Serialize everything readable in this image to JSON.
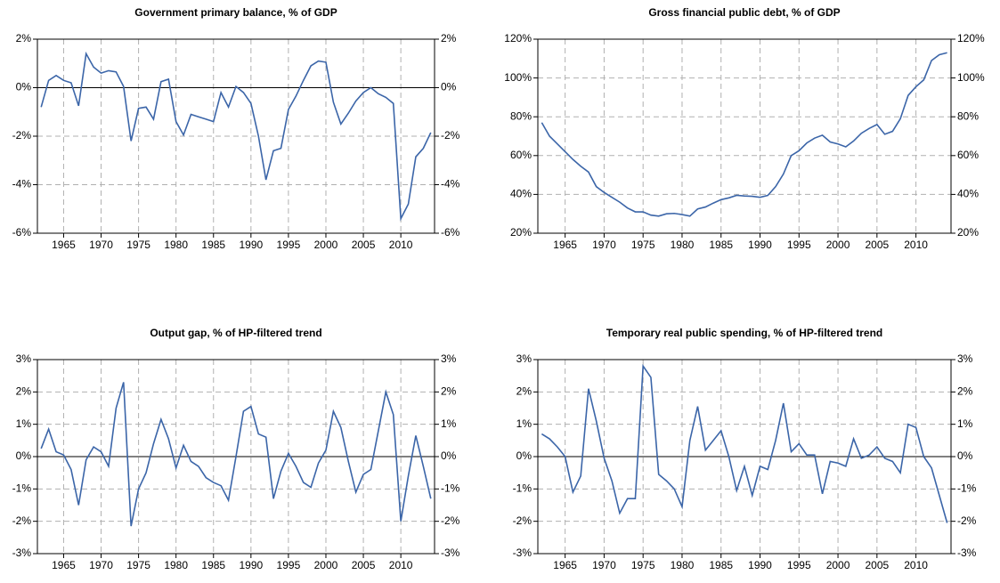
{
  "chart_data": [
    {
      "type": "line",
      "title": "Government primary balance, % of GDP",
      "x": [
        1962,
        1963,
        1964,
        1965,
        1966,
        1967,
        1968,
        1969,
        1970,
        1971,
        1972,
        1973,
        1974,
        1975,
        1976,
        1977,
        1978,
        1979,
        1980,
        1981,
        1982,
        1983,
        1984,
        1985,
        1986,
        1987,
        1988,
        1989,
        1990,
        1991,
        1992,
        1993,
        1994,
        1995,
        1996,
        1997,
        1998,
        1999,
        2000,
        2001,
        2002,
        2003,
        2004,
        2005,
        2006,
        2007,
        2008,
        2009,
        2010,
        2011,
        2012,
        2013,
        2014
      ],
      "values": [
        -0.8,
        0.3,
        0.5,
        0.3,
        0.2,
        -0.75,
        1.4,
        0.85,
        0.6,
        0.7,
        0.65,
        0.05,
        -2.2,
        -0.85,
        -0.8,
        -1.3,
        0.25,
        0.35,
        -1.4,
        -1.95,
        -1.1,
        -1.2,
        -1.3,
        -1.4,
        -0.2,
        -0.8,
        0.05,
        -0.2,
        -0.65,
        -2.0,
        -3.8,
        -2.6,
        -2.5,
        -0.9,
        -0.35,
        0.3,
        0.9,
        1.1,
        1.05,
        -0.6,
        -1.5,
        -1.05,
        -0.55,
        -0.2,
        0,
        -0.25,
        -0.4,
        -0.65,
        -5.4,
        -4.8,
        -2.85,
        -2.5,
        -1.85
      ],
      "color": "#3b65a8",
      "xlim": [
        1961.5,
        2014.5
      ],
      "xticks": [
        1965,
        1970,
        1975,
        1980,
        1985,
        1990,
        1995,
        2000,
        2005,
        2010
      ],
      "ylim": [
        -6,
        2
      ],
      "yticks": [
        {
          "value": -6,
          "label": "-6%"
        },
        {
          "value": -4,
          "label": "-4%"
        },
        {
          "value": -2,
          "label": "-2%"
        },
        {
          "value": 0,
          "label": "0%"
        },
        {
          "value": 2,
          "label": "2%"
        }
      ],
      "grid": true
    },
    {
      "type": "line",
      "title": "Gross financial public debt, % of GDP",
      "x": [
        1962,
        1963,
        1964,
        1965,
        1966,
        1967,
        1968,
        1969,
        1970,
        1971,
        1972,
        1973,
        1974,
        1975,
        1976,
        1977,
        1978,
        1979,
        1980,
        1981,
        1982,
        1983,
        1984,
        1985,
        1986,
        1987,
        1988,
        1989,
        1990,
        1991,
        1992,
        1993,
        1994,
        1995,
        1996,
        1997,
        1998,
        1999,
        2000,
        2001,
        2002,
        2003,
        2004,
        2005,
        2006,
        2007,
        2008,
        2009,
        2010,
        2011,
        2012,
        2013,
        2014
      ],
      "values": [
        77,
        70,
        66,
        62,
        58,
        54.5,
        51.5,
        44,
        41,
        38.5,
        36,
        33,
        31,
        31,
        29.3,
        28.8,
        30,
        30.2,
        29.6,
        28.8,
        32.5,
        33.5,
        35.5,
        37.3,
        38.2,
        39.5,
        39.2,
        39,
        38.5,
        39.5,
        44,
        50.5,
        60,
        62.5,
        66.5,
        69,
        70.5,
        67,
        66,
        64.5,
        67.5,
        71.5,
        74,
        76,
        71,
        72.5,
        79,
        91,
        95.5,
        99,
        109,
        112,
        113
      ],
      "color": "#3b65a8",
      "xlim": [
        1961.5,
        2014.5
      ],
      "xticks": [
        1965,
        1970,
        1975,
        1980,
        1985,
        1990,
        1995,
        2000,
        2005,
        2010
      ],
      "ylim": [
        20,
        120
      ],
      "yticks": [
        {
          "value": 20,
          "label": "20%"
        },
        {
          "value": 40,
          "label": "40%"
        },
        {
          "value": 60,
          "label": "60%"
        },
        {
          "value": 80,
          "label": "80%"
        },
        {
          "value": 100,
          "label": "100%"
        },
        {
          "value": 120,
          "label": "120%"
        }
      ],
      "grid": true
    },
    {
      "type": "line",
      "title": "Output gap, % of HP-filtered trend",
      "x": [
        1962,
        1963,
        1964,
        1965,
        1966,
        1967,
        1968,
        1969,
        1970,
        1971,
        1972,
        1973,
        1974,
        1975,
        1976,
        1977,
        1978,
        1979,
        1980,
        1981,
        1982,
        1983,
        1984,
        1985,
        1986,
        1987,
        1988,
        1989,
        1990,
        1991,
        1992,
        1993,
        1994,
        1995,
        1996,
        1997,
        1998,
        1999,
        2000,
        2001,
        2002,
        2003,
        2004,
        2005,
        2006,
        2007,
        2008,
        2009,
        2010,
        2011,
        2012,
        2013,
        2014
      ],
      "values": [
        0.25,
        0.85,
        0.15,
        0.05,
        -0.4,
        -1.5,
        -0.1,
        0.3,
        0.15,
        -0.3,
        1.5,
        2.3,
        -2.15,
        -1.0,
        -0.5,
        0.4,
        1.15,
        0.55,
        -0.35,
        0.35,
        -0.15,
        -0.3,
        -0.65,
        -0.8,
        -0.9,
        -1.35,
        0.0,
        1.4,
        1.55,
        0.7,
        0.6,
        -1.3,
        -0.45,
        0.1,
        -0.3,
        -0.8,
        -0.95,
        -0.2,
        0.2,
        1.4,
        0.9,
        -0.15,
        -1.1,
        -0.55,
        -0.4,
        0.8,
        2.0,
        1.3,
        -2.0,
        -0.6,
        0.65,
        -0.3,
        -1.3
      ],
      "color": "#3b65a8",
      "xlim": [
        1961.5,
        2014.5
      ],
      "xticks": [
        1965,
        1970,
        1975,
        1980,
        1985,
        1990,
        1995,
        2000,
        2005,
        2010
      ],
      "ylim": [
        -3,
        3
      ],
      "yticks": [
        {
          "value": -3,
          "label": "-3%"
        },
        {
          "value": -2,
          "label": "-2%"
        },
        {
          "value": -1,
          "label": "-1%"
        },
        {
          "value": 0,
          "label": "0%"
        },
        {
          "value": 1,
          "label": "1%"
        },
        {
          "value": 2,
          "label": "2%"
        },
        {
          "value": 3,
          "label": "3%"
        }
      ],
      "grid": true
    },
    {
      "type": "line",
      "title": "Temporary real public spending, % of HP-filtered trend",
      "x": [
        1962,
        1963,
        1964,
        1965,
        1966,
        1967,
        1968,
        1969,
        1970,
        1971,
        1972,
        1973,
        1974,
        1975,
        1976,
        1977,
        1978,
        1979,
        1980,
        1981,
        1982,
        1983,
        1984,
        1985,
        1986,
        1987,
        1988,
        1989,
        1990,
        1991,
        1992,
        1993,
        1994,
        1995,
        1996,
        1997,
        1998,
        1999,
        2000,
        2001,
        2002,
        2003,
        2004,
        2005,
        2006,
        2007,
        2008,
        2009,
        2010,
        2011,
        2012,
        2013,
        2014
      ],
      "values": [
        0.7,
        0.55,
        0.3,
        0,
        -1.1,
        -0.6,
        2.1,
        1.1,
        -0.05,
        -0.75,
        -1.75,
        -1.3,
        -1.3,
        2.8,
        2.45,
        -0.55,
        -0.75,
        -1.0,
        -1.55,
        0.5,
        1.55,
        0.2,
        0.5,
        0.8,
        0.0,
        -1.05,
        -0.3,
        -1.2,
        -0.3,
        -0.4,
        0.5,
        1.65,
        0.15,
        0.4,
        0.05,
        0.05,
        -1.15,
        -0.15,
        -0.2,
        -0.3,
        0.55,
        -0.05,
        0.05,
        0.3,
        -0.05,
        -0.15,
        -0.5,
        1.0,
        0.9,
        0.0,
        -0.35,
        -1.2,
        -2.05
      ],
      "color": "#3b65a8",
      "xlim": [
        1961.5,
        2014.5
      ],
      "xticks": [
        1965,
        1970,
        1975,
        1980,
        1985,
        1990,
        1995,
        2000,
        2005,
        2010
      ],
      "ylim": [
        -3,
        3
      ],
      "yticks": [
        {
          "value": -3,
          "label": "-3%"
        },
        {
          "value": -2,
          "label": "-2%"
        },
        {
          "value": -1,
          "label": "-1%"
        },
        {
          "value": 0,
          "label": "0%"
        },
        {
          "value": 1,
          "label": "1%"
        },
        {
          "value": 2,
          "label": "2%"
        },
        {
          "value": 3,
          "label": "3%"
        }
      ],
      "grid": true
    }
  ]
}
